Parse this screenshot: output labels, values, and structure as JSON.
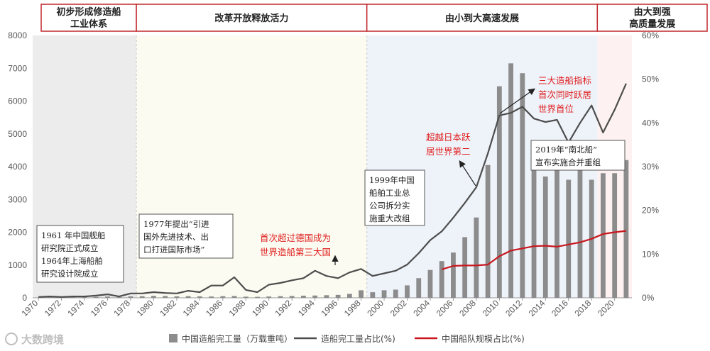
{
  "eras": [
    {
      "label_lines": [
        "初步形成修造船",
        "工业体系"
      ],
      "span": [
        1969.5,
        1978.5
      ],
      "bg": "#ececec"
    },
    {
      "label_lines": [
        "改革开放释放活力"
      ],
      "span": [
        1978.5,
        1998.5
      ],
      "bg": "#fbfbf1"
    },
    {
      "label_lines": [
        "由小到大高速发展"
      ],
      "span": [
        1998.5,
        2018.5
      ],
      "bg": "#eef3fa"
    },
    {
      "label_lines": [
        "由大到强",
        "高质量发展"
      ],
      "span": [
        2018.5,
        2021.5
      ],
      "bg": "#fdf1f1"
    }
  ],
  "annotations": {
    "note_1961": [
      "1961 年中国舰船",
      "研究院正式成立",
      "1964年上海船舶",
      "研究设计院成立"
    ],
    "note_1977": [
      "1977年提出“引进",
      "国外先进技术、出",
      "口打进国际市场”"
    ],
    "note_1999": [
      "1999年中国",
      "船舶工业总",
      "公司拆分实",
      "施重大改组"
    ],
    "note_2019": [
      "2019年“南北船”",
      "宣布实施合并重组"
    ],
    "red_1994": [
      "首次超过德国成为",
      "世界造船第三大国"
    ],
    "red_2008": [
      "超越日本跃",
      "居世界第二"
    ],
    "red_2010": [
      "三大造船指标",
      "首次同时跃居",
      "世界首位"
    ]
  },
  "watermark": "大数跨境",
  "colors": {
    "bar": "#8c8c8c",
    "line": "#4d4d4d",
    "red": "#c8171e",
    "era_border": "#c0282d"
  },
  "chart_data": {
    "type": "bar",
    "x": [
      1970,
      1971,
      1972,
      1973,
      1974,
      1975,
      1976,
      1977,
      1978,
      1979,
      1980,
      1981,
      1982,
      1983,
      1984,
      1985,
      1986,
      1987,
      1988,
      1989,
      1990,
      1991,
      1992,
      1993,
      1994,
      1995,
      1996,
      1997,
      1998,
      1999,
      2000,
      2001,
      2002,
      2003,
      2004,
      2005,
      2006,
      2007,
      2008,
      2009,
      2010,
      2011,
      2012,
      2013,
      2014,
      2015,
      2016,
      2017,
      2018,
      2019,
      2020,
      2021
    ],
    "x_tick_labels": [
      "1970",
      "1972",
      "1974",
      "1976",
      "1978",
      "1980",
      "1982",
      "1984",
      "1986",
      "1988",
      "1990",
      "1992",
      "1994",
      "1996",
      "1998",
      "2000",
      "2002",
      "2004",
      "2006",
      "2008",
      "2010",
      "2012",
      "2014",
      "2016",
      "2018",
      "2020"
    ],
    "series": [
      {
        "name": "中国造船完工量（万载重吨）",
        "axis": "left",
        "kind": "bar",
        "values": [
          10,
          12,
          15,
          20,
          22,
          30,
          40,
          25,
          45,
          50,
          60,
          55,
          45,
          50,
          45,
          40,
          50,
          55,
          35,
          30,
          40,
          50,
          55,
          65,
          70,
          80,
          90,
          120,
          230,
          170,
          230,
          250,
          380,
          600,
          850,
          1120,
          1380,
          1850,
          2450,
          4050,
          6450,
          7150,
          6850,
          4500,
          3700,
          4100,
          3600,
          3900,
          3600,
          3800,
          3800,
          4200
        ]
      },
      {
        "name": "造船完工量占比(%)",
        "axis": "right",
        "kind": "line",
        "values": [
          0.2,
          0.3,
          0.2,
          0.3,
          0.3,
          0.5,
          0.8,
          0.3,
          1.0,
          1.0,
          1.3,
          1.1,
          1.0,
          1.6,
          1.3,
          2.8,
          2.8,
          4.7,
          1.8,
          1.3,
          3.0,
          3.4,
          4.0,
          4.5,
          6.2,
          5.0,
          4.5,
          5.8,
          6.6,
          5.0,
          5.6,
          6.2,
          7.6,
          10.2,
          13.2,
          15.2,
          18.3,
          21.7,
          25.3,
          33.0,
          41.7,
          42.3,
          43.7,
          41.0,
          40.2,
          40.7,
          35.5,
          40.0,
          44.0,
          37.8,
          43.0,
          49.0
        ]
      },
      {
        "name": "中国船队规模占比(%)",
        "axis": "right",
        "kind": "line",
        "x": [
          2005,
          2006,
          2007,
          2008,
          2009,
          2010,
          2011,
          2012,
          2013,
          2014,
          2015,
          2016,
          2017,
          2018,
          2019,
          2020,
          2021
        ],
        "values": [
          6.5,
          7.3,
          7.4,
          7.4,
          7.6,
          9.5,
          10.8,
          11.3,
          11.8,
          11.9,
          11.7,
          12.2,
          12.7,
          13.5,
          14.6,
          15.0,
          15.3
        ]
      }
    ],
    "ylim_left": [
      0,
      8000
    ],
    "yticks_left": [
      0,
      1000,
      2000,
      3000,
      4000,
      5000,
      6000,
      7000,
      8000
    ],
    "ylim_right": [
      0,
      60
    ],
    "yticks_right": [
      "0%",
      "10%",
      "20%",
      "30%",
      "40%",
      "50%",
      "60%"
    ],
    "legend_position": "bottom"
  }
}
